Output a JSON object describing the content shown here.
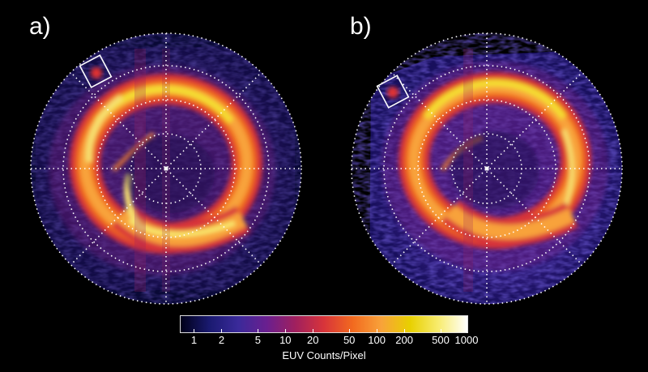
{
  "panels": [
    {
      "label": "a)"
    },
    {
      "label": "b)"
    }
  ],
  "colorbar": {
    "title": "EUV Counts/Pixel",
    "ticks": [
      "1",
      "2",
      "5",
      "10",
      "20",
      "50",
      "100",
      "200",
      "500",
      "1000"
    ],
    "tick_values": [
      1,
      2,
      5,
      10,
      20,
      50,
      100,
      200,
      500,
      1000
    ],
    "scale": "log",
    "range": [
      0.7,
      1000
    ],
    "colors": [
      "#000018",
      "#1a1a70",
      "#3a2a9a",
      "#6a1f8f",
      "#a0205e",
      "#d8343a",
      "#f26a1f",
      "#f8a23a",
      "#e8d000",
      "#f8ec70",
      "#ffffff"
    ]
  },
  "colors": {
    "background": "#000000",
    "grid": "#ffffff",
    "footprint_box": "#ffffff"
  }
}
